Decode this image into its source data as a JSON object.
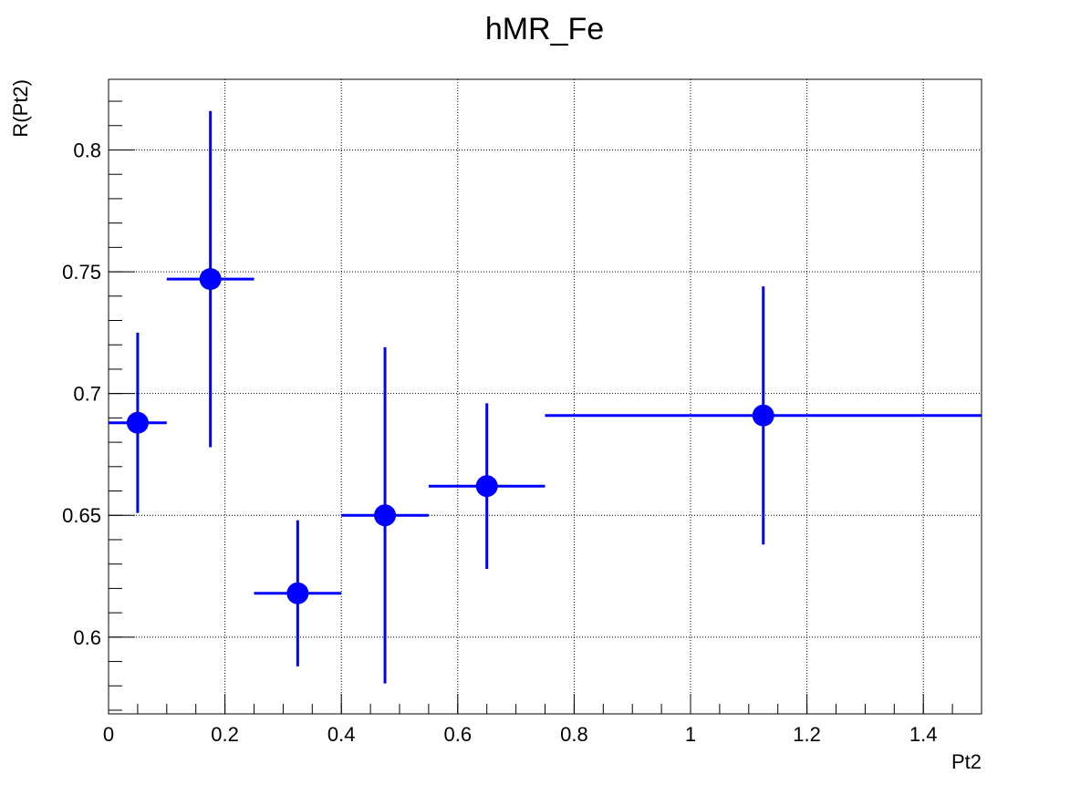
{
  "chart_data": {
    "type": "scatter",
    "title": "hMR_Fe",
    "xlabel": "Pt2",
    "ylabel": "R(Pt2)",
    "xlim": [
      0,
      1.5
    ],
    "ylim": [
      0.5685,
      0.829
    ],
    "grid": true,
    "marker_color": "#0000ff",
    "x_ticks": [
      {
        "value": 0,
        "label": "0"
      },
      {
        "value": 0.2,
        "label": "0.2"
      },
      {
        "value": 0.4,
        "label": "0.4"
      },
      {
        "value": 0.6,
        "label": "0.6"
      },
      {
        "value": 0.8,
        "label": "0.8"
      },
      {
        "value": 1.0,
        "label": "1"
      },
      {
        "value": 1.2,
        "label": "1.2"
      },
      {
        "value": 1.4,
        "label": "1.4"
      }
    ],
    "y_ticks": [
      {
        "value": 0.6,
        "label": "0.6"
      },
      {
        "value": 0.65,
        "label": "0.65"
      },
      {
        "value": 0.7,
        "label": "0.7"
      },
      {
        "value": 0.75,
        "label": "0.75"
      },
      {
        "value": 0.8,
        "label": "0.8"
      }
    ],
    "points": [
      {
        "x": 0.05,
        "y": 0.688,
        "x_low": 0.0,
        "x_high": 0.1,
        "y_err": 0.037
      },
      {
        "x": 0.175,
        "y": 0.747,
        "x_low": 0.1,
        "x_high": 0.25,
        "y_err": 0.069
      },
      {
        "x": 0.325,
        "y": 0.618,
        "x_low": 0.25,
        "x_high": 0.4,
        "y_err": 0.03
      },
      {
        "x": 0.475,
        "y": 0.65,
        "x_low": 0.4,
        "x_high": 0.55,
        "y_err": 0.069
      },
      {
        "x": 0.65,
        "y": 0.662,
        "x_low": 0.55,
        "x_high": 0.75,
        "y_err": 0.034
      },
      {
        "x": 1.125,
        "y": 0.691,
        "x_low": 0.75,
        "x_high": 1.5,
        "y_err": 0.053
      }
    ]
  }
}
